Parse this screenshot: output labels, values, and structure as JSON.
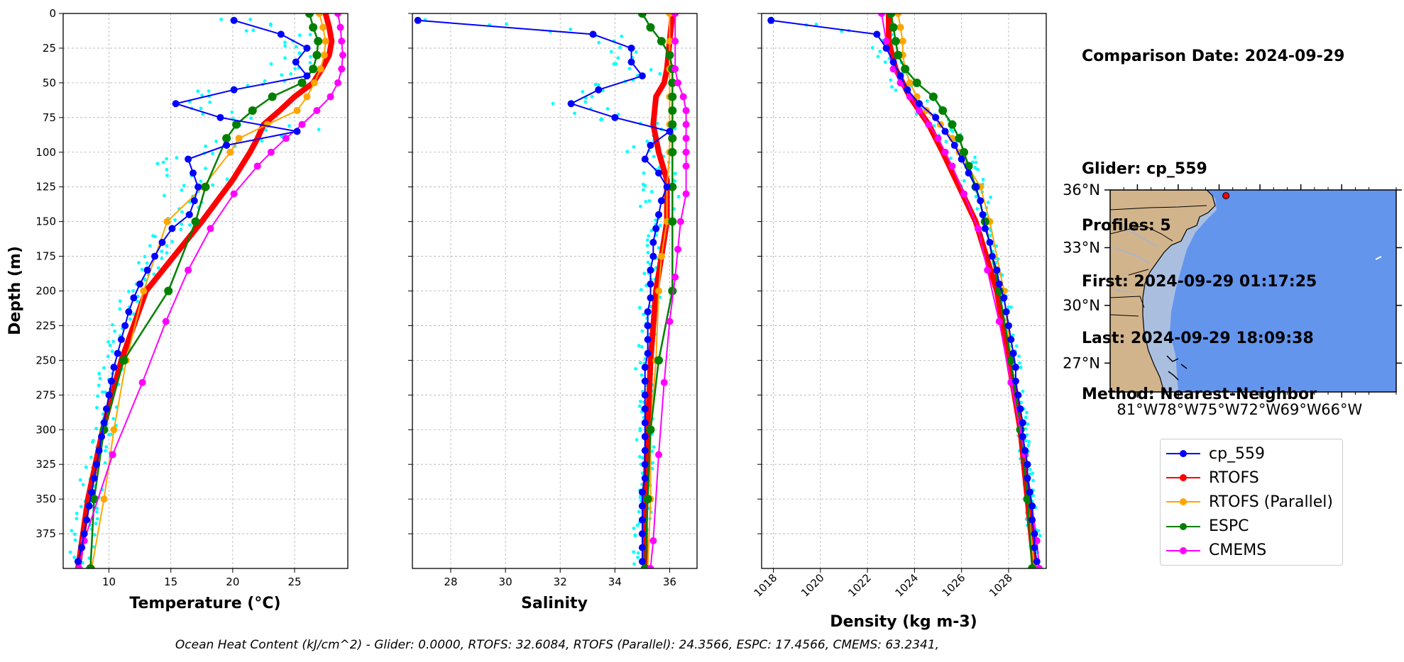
{
  "info": {
    "comparison_date": "Comparison Date: 2024-09-29",
    "glider": "Glider: cp_559",
    "profiles": "Profiles: 5",
    "first": "First: 2024-09-29 01:17:25",
    "last": "Last: 2024-09-29 18:09:38",
    "method": "Method: Nearest-Neighbor"
  },
  "footer": "Ocean Heat Content (kJ/cm^2) - Glider: 0.0000,  RTOFS: 32.6084,  RTOFS (Parallel): 24.3566,  ESPC: 17.4566,  CMEMS: 63.2341,",
  "colors": {
    "glider": "#0000ff",
    "rtofs": "#ff0000",
    "rtofs_parallel": "#ffa500",
    "espc": "#008000",
    "cmems": "#ff00ff",
    "raw": "#00ffff",
    "land": "#d2b48c",
    "ocean": "#6495ed",
    "shelf": "#aabfe0",
    "marker": "#ff0000"
  },
  "legend": [
    {
      "name": "cp_559",
      "key": "glider"
    },
    {
      "name": "RTOFS",
      "key": "rtofs"
    },
    {
      "name": "RTOFS (Parallel)",
      "key": "rtofs_parallel"
    },
    {
      "name": "ESPC",
      "key": "espc"
    },
    {
      "name": "CMEMS",
      "key": "cmems"
    }
  ],
  "map": {
    "lat_labels": [
      "36°N",
      "33°N",
      "30°N",
      "27°N"
    ],
    "lon_labels": [
      "81°W",
      "78°W",
      "75°W",
      "72°W",
      "69°W",
      "66°W"
    ],
    "extent": {
      "lon": [
        -83,
        -62
      ],
      "lat": [
        25.5,
        36
      ]
    },
    "glider_position": {
      "lon": -74.5,
      "lat": 35.7
    }
  },
  "chart_data": [
    {
      "type": "line",
      "xlabel": "Temperature (°C)",
      "ylabel": "Depth (m)",
      "xlim": [
        6.3,
        29.3
      ],
      "ylim": [
        400,
        0
      ],
      "xticks": [
        10,
        15,
        20,
        25
      ],
      "yticks": [
        0,
        25,
        50,
        75,
        100,
        125,
        150,
        175,
        200,
        225,
        250,
        275,
        300,
        325,
        350,
        375
      ],
      "grid": true,
      "series": [
        {
          "name": "cp_559",
          "key": "glider",
          "depth": [
            5,
            15,
            25,
            35,
            45,
            55,
            65,
            75,
            85,
            95,
            105,
            115,
            125,
            135,
            145,
            155,
            165,
            175,
            185,
            195,
            205,
            215,
            225,
            235,
            245,
            255,
            265,
            275,
            285,
            295,
            305,
            315,
            325,
            335,
            345,
            355,
            365,
            375,
            385,
            395
          ],
          "values": [
            20.1,
            23.9,
            26.0,
            25.1,
            26.0,
            20.1,
            15.4,
            19.0,
            25.2,
            19.5,
            16.4,
            16.8,
            17.2,
            16.9,
            16.5,
            15.1,
            14.3,
            13.7,
            13.1,
            12.5,
            12.0,
            11.6,
            11.3,
            11.0,
            10.7,
            10.4,
            10.2,
            10.0,
            9.8,
            9.6,
            9.4,
            9.2,
            9.0,
            8.8,
            8.6,
            8.4,
            8.2,
            8.0,
            7.8,
            7.5
          ]
        },
        {
          "name": "RTOFS",
          "key": "rtofs",
          "depth": [
            0,
            10,
            20,
            30,
            40,
            50,
            60,
            70,
            80,
            90,
            100,
            120,
            150,
            200,
            250,
            300,
            350,
            400
          ],
          "values": [
            27.5,
            27.8,
            28.0,
            27.8,
            27.2,
            26.5,
            25.0,
            23.8,
            22.5,
            22.0,
            21.4,
            20.0,
            17.5,
            13.0,
            11.0,
            9.5,
            8.3,
            7.5
          ]
        },
        {
          "name": "RTOFS (Parallel)",
          "key": "rtofs_parallel",
          "depth": [
            0,
            10,
            20,
            30,
            40,
            50,
            60,
            70,
            80,
            90,
            100,
            125,
            150,
            200,
            250,
            300,
            350,
            400
          ],
          "values": [
            27.0,
            27.3,
            27.5,
            27.4,
            27.1,
            26.6,
            26.0,
            25.2,
            22.8,
            20.5,
            19.8,
            17.6,
            14.7,
            12.8,
            11.4,
            10.4,
            9.6,
            8.6
          ]
        },
        {
          "name": "ESPC",
          "key": "espc",
          "depth": [
            0,
            10,
            20,
            30,
            40,
            50,
            60,
            70,
            80,
            90,
            125,
            150,
            200,
            250,
            300,
            350,
            400
          ],
          "values": [
            26.2,
            26.5,
            26.9,
            26.8,
            26.5,
            25.6,
            23.2,
            21.6,
            20.3,
            19.5,
            17.8,
            17.0,
            14.8,
            11.2,
            9.6,
            8.8,
            8.5
          ]
        },
        {
          "name": "CMEMS",
          "key": "cmems",
          "depth": [
            0,
            10,
            20,
            30,
            40,
            50,
            60,
            70,
            80,
            90,
            100,
            110,
            130,
            155,
            185,
            222,
            266,
            318,
            380,
            400
          ],
          "values": [
            28.5,
            28.7,
            28.8,
            28.9,
            28.8,
            28.5,
            27.9,
            26.8,
            25.6,
            24.3,
            23.1,
            22.0,
            20.1,
            18.2,
            16.4,
            14.6,
            12.7,
            10.3,
            8.0,
            7.6
          ]
        }
      ]
    },
    {
      "type": "line",
      "xlabel": "Salinity",
      "ylabel": "",
      "xlim": [
        26.6,
        37.0
      ],
      "ylim": [
        400,
        0
      ],
      "xticks": [
        28,
        30,
        32,
        34,
        36
      ],
      "grid": true,
      "series": [
        {
          "name": "cp_559",
          "key": "glider",
          "depth": [
            5,
            15,
            25,
            35,
            45,
            55,
            65,
            75,
            85,
            95,
            105,
            115,
            125,
            135,
            145,
            155,
            165,
            175,
            185,
            195,
            205,
            215,
            225,
            235,
            245,
            255,
            265,
            275,
            285,
            295,
            305,
            315,
            325,
            335,
            345,
            355,
            365,
            375,
            385,
            395
          ],
          "values": [
            26.8,
            33.2,
            34.6,
            34.6,
            35.0,
            33.4,
            32.4,
            34.0,
            36.0,
            35.3,
            35.1,
            35.6,
            35.9,
            35.7,
            35.6,
            35.5,
            35.4,
            35.4,
            35.3,
            35.3,
            35.3,
            35.2,
            35.2,
            35.2,
            35.2,
            35.1,
            35.1,
            35.1,
            35.1,
            35.1,
            35.1,
            35.1,
            35.1,
            35.1,
            35.0,
            35.0,
            35.0,
            35.0,
            35.0,
            35.0
          ]
        },
        {
          "name": "RTOFS",
          "key": "rtofs",
          "depth": [
            0,
            20,
            40,
            50,
            60,
            80,
            100,
            120,
            150,
            200,
            250,
            300,
            350,
            400
          ],
          "values": [
            36.1,
            36.0,
            35.9,
            35.8,
            35.5,
            35.4,
            35.6,
            35.9,
            35.9,
            35.5,
            35.3,
            35.2,
            35.1,
            35.1
          ]
        },
        {
          "name": "RTOFS (Parallel)",
          "key": "rtofs_parallel",
          "depth": [
            0,
            20,
            40,
            60,
            80,
            100,
            125,
            150,
            175,
            200,
            250,
            300,
            350,
            400
          ],
          "values": [
            36.0,
            36.0,
            36.0,
            36.0,
            36.0,
            36.0,
            35.9,
            35.9,
            35.7,
            35.6,
            35.5,
            35.3,
            35.3,
            35.2
          ]
        },
        {
          "name": "ESPC",
          "key": "espc",
          "depth": [
            0,
            10,
            20,
            30,
            40,
            50,
            60,
            70,
            80,
            90,
            100,
            125,
            150,
            200,
            250,
            300,
            350,
            400
          ],
          "values": [
            35.0,
            35.3,
            35.7,
            36.0,
            36.1,
            36.1,
            36.1,
            36.1,
            36.1,
            36.1,
            36.1,
            36.1,
            36.1,
            36.1,
            35.6,
            35.3,
            35.2,
            35.1
          ]
        },
        {
          "name": "CMEMS",
          "key": "cmems",
          "depth": [
            0,
            20,
            40,
            50,
            60,
            70,
            80,
            90,
            100,
            110,
            130,
            150,
            170,
            190,
            222,
            266,
            318,
            380,
            400
          ],
          "values": [
            36.2,
            36.2,
            36.2,
            36.3,
            36.5,
            36.6,
            36.6,
            36.6,
            36.6,
            36.6,
            36.6,
            36.4,
            36.3,
            36.2,
            36.0,
            35.8,
            35.6,
            35.4,
            35.3
          ]
        }
      ]
    },
    {
      "type": "line",
      "xlabel": "Density (kg m-3)",
      "ylabel": "",
      "xlim": [
        1017.5,
        1029.6
      ],
      "ylim": [
        400,
        0
      ],
      "xticks": [
        1018,
        1020,
        1022,
        1024,
        1026,
        1028
      ],
      "grid": true,
      "series": [
        {
          "name": "cp_559",
          "key": "glider",
          "depth": [
            5,
            15,
            25,
            35,
            45,
            55,
            65,
            75,
            85,
            95,
            105,
            115,
            125,
            135,
            145,
            155,
            165,
            175,
            185,
            195,
            205,
            215,
            225,
            235,
            245,
            255,
            265,
            275,
            285,
            295,
            305,
            315,
            325,
            335,
            345,
            355,
            365,
            375,
            385,
            395
          ],
          "values": [
            1017.9,
            1022.4,
            1022.8,
            1023.1,
            1023.4,
            1023.7,
            1024.2,
            1024.9,
            1025.3,
            1025.7,
            1026.0,
            1026.3,
            1026.6,
            1026.8,
            1026.9,
            1027.0,
            1027.2,
            1027.3,
            1027.5,
            1027.6,
            1027.8,
            1027.9,
            1028.0,
            1028.1,
            1028.2,
            1028.3,
            1028.3,
            1028.4,
            1028.5,
            1028.6,
            1028.6,
            1028.7,
            1028.8,
            1028.8,
            1028.9,
            1029.0,
            1029.0,
            1029.1,
            1029.1,
            1029.2
          ]
        },
        {
          "name": "RTOFS",
          "key": "rtofs",
          "depth": [
            0,
            20,
            40,
            60,
            80,
            100,
            125,
            150,
            200,
            250,
            300,
            350,
            400
          ],
          "values": [
            1022.9,
            1022.9,
            1023.2,
            1023.8,
            1024.6,
            1025.2,
            1025.9,
            1026.6,
            1027.5,
            1028.0,
            1028.5,
            1028.8,
            1029.1
          ]
        },
        {
          "name": "RTOFS (Parallel)",
          "key": "rtofs_parallel",
          "depth": [
            0,
            10,
            20,
            30,
            40,
            50,
            60,
            70,
            80,
            90,
            100,
            125,
            150,
            200,
            250,
            300,
            350,
            400
          ],
          "values": [
            1023.3,
            1023.4,
            1023.5,
            1023.5,
            1023.6,
            1023.8,
            1024.1,
            1024.5,
            1025.1,
            1025.6,
            1025.9,
            1026.8,
            1027.2,
            1027.8,
            1028.1,
            1028.5,
            1028.8,
            1029.1
          ]
        },
        {
          "name": "ESPC",
          "key": "espc",
          "depth": [
            0,
            10,
            20,
            30,
            40,
            50,
            60,
            70,
            80,
            90,
            100,
            110,
            125,
            150,
            200,
            250,
            300,
            350,
            400
          ],
          "values": [
            1023.0,
            1023.1,
            1023.2,
            1023.3,
            1023.6,
            1024.1,
            1024.8,
            1025.2,
            1025.6,
            1025.9,
            1026.1,
            1026.3,
            1026.6,
            1027.0,
            1027.6,
            1028.1,
            1028.5,
            1028.8,
            1029.0
          ]
        },
        {
          "name": "CMEMS",
          "key": "cmems",
          "depth": [
            0,
            20,
            40,
            50,
            60,
            70,
            80,
            90,
            100,
            110,
            130,
            155,
            185,
            222,
            266,
            318,
            380,
            400
          ],
          "values": [
            1022.6,
            1022.8,
            1023.1,
            1023.4,
            1023.8,
            1024.2,
            1024.6,
            1025.0,
            1025.3,
            1025.6,
            1026.1,
            1026.7,
            1027.1,
            1027.6,
            1028.1,
            1028.7,
            1029.2,
            1029.3
          ]
        }
      ]
    }
  ]
}
